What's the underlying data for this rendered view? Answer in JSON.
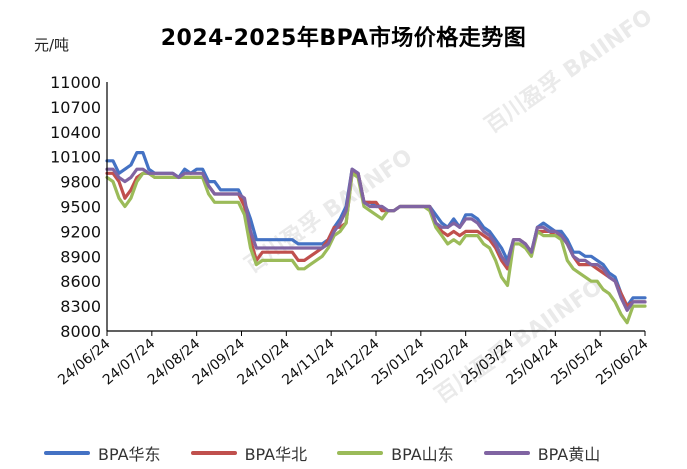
{
  "chart_data": {
    "type": "line",
    "title": "2024-2025年BPA市场价格走势图",
    "ylabel": "元/吨",
    "ylim": [
      8000,
      11000
    ],
    "yticks": [
      8000,
      8300,
      8600,
      8900,
      9200,
      9500,
      9800,
      10100,
      10400,
      10700,
      11000
    ],
    "xticks": [
      "24/06/24",
      "24/07/24",
      "24/08/24",
      "24/09/24",
      "24/10/24",
      "24/11/24",
      "24/12/24",
      "25/01/24",
      "25/02/24",
      "25/03/24",
      "25/04/24",
      "25/05/24",
      "25/06/24"
    ],
    "watermark": "百川盈孚 BAIINFO",
    "series": [
      {
        "name": "BPA华东",
        "color": "#4472C4",
        "values": [
          10050,
          10050,
          9900,
          9950,
          10000,
          10150,
          10150,
          9950,
          9900,
          9900,
          9900,
          9900,
          9850,
          9950,
          9900,
          9950,
          9950,
          9800,
          9800,
          9700,
          9700,
          9700,
          9700,
          9550,
          9350,
          9100,
          9100,
          9100,
          9100,
          9100,
          9100,
          9100,
          9050,
          9050,
          9050,
          9050,
          9050,
          9100,
          9250,
          9350,
          9500,
          9950,
          9900,
          9550,
          9550,
          9500,
          9500,
          9450,
          9450,
          9500,
          9500,
          9500,
          9500,
          9500,
          9500,
          9400,
          9300,
          9250,
          9350,
          9250,
          9400,
          9400,
          9350,
          9250,
          9200,
          9100,
          9000,
          8850,
          9100,
          9100,
          9050,
          8950,
          9250,
          9300,
          9250,
          9200,
          9200,
          9100,
          8950,
          8950,
          8900,
          8900,
          8850,
          8800,
          8700,
          8650,
          8450,
          8300,
          8400,
          8400,
          8400
        ]
      },
      {
        "name": "BPA华北",
        "color": "#C0504D",
        "values": [
          9900,
          9900,
          9800,
          9600,
          9700,
          9850,
          9900,
          9900,
          9850,
          9850,
          9850,
          9850,
          9850,
          9850,
          9850,
          9850,
          9850,
          9750,
          9650,
          9650,
          9650,
          9650,
          9650,
          9500,
          9100,
          8850,
          8950,
          8950,
          8950,
          8950,
          8950,
          8950,
          8850,
          8850,
          8900,
          8950,
          9000,
          9100,
          9250,
          9250,
          9300,
          9900,
          9900,
          9550,
          9550,
          9550,
          9450,
          9450,
          9450,
          9500,
          9500,
          9500,
          9500,
          9500,
          9500,
          9300,
          9200,
          9150,
          9200,
          9150,
          9200,
          9200,
          9200,
          9150,
          9100,
          9000,
          8850,
          8750,
          9100,
          9100,
          9050,
          8950,
          9200,
          9200,
          9200,
          9150,
          9150,
          9050,
          8900,
          8800,
          8800,
          8800,
          8750,
          8700,
          8650,
          8600,
          8450,
          8300,
          8350,
          8350,
          8350
        ]
      },
      {
        "name": "BPA山东",
        "color": "#9BBB59",
        "values": [
          9850,
          9800,
          9600,
          9500,
          9600,
          9800,
          9900,
          9900,
          9850,
          9850,
          9850,
          9850,
          9850,
          9850,
          9850,
          9850,
          9850,
          9650,
          9550,
          9550,
          9550,
          9550,
          9550,
          9400,
          9000,
          8800,
          8850,
          8850,
          8850,
          8850,
          8850,
          8850,
          8750,
          8750,
          8800,
          8850,
          8900,
          9000,
          9150,
          9200,
          9300,
          9900,
          9850,
          9500,
          9450,
          9400,
          9350,
          9450,
          9450,
          9500,
          9500,
          9500,
          9500,
          9500,
          9450,
          9250,
          9150,
          9050,
          9100,
          9050,
          9150,
          9150,
          9150,
          9050,
          9000,
          8850,
          8650,
          8550,
          9050,
          9050,
          9000,
          8900,
          9200,
          9150,
          9150,
          9150,
          9100,
          8850,
          8750,
          8700,
          8650,
          8600,
          8600,
          8500,
          8450,
          8350,
          8200,
          8100,
          8300,
          8300,
          8300
        ]
      },
      {
        "name": "BPA黄山",
        "color": "#8064A2",
        "values": [
          9950,
          9950,
          9850,
          9800,
          9850,
          9950,
          9950,
          9900,
          9900,
          9900,
          9900,
          9900,
          9850,
          9900,
          9900,
          9900,
          9900,
          9750,
          9650,
          9650,
          9650,
          9650,
          9650,
          9600,
          9200,
          9000,
          9000,
          9000,
          9000,
          9000,
          9000,
          9000,
          9000,
          9000,
          9000,
          9000,
          9000,
          9050,
          9200,
          9300,
          9450,
          9950,
          9900,
          9550,
          9500,
          9500,
          9500,
          9450,
          9450,
          9500,
          9500,
          9500,
          9500,
          9500,
          9500,
          9300,
          9250,
          9250,
          9300,
          9250,
          9350,
          9350,
          9300,
          9200,
          9150,
          9050,
          8900,
          8800,
          9100,
          9100,
          9050,
          8950,
          9250,
          9250,
          9200,
          9200,
          9150,
          9050,
          8900,
          8850,
          8850,
          8800,
          8800,
          8750,
          8650,
          8600,
          8400,
          8250,
          8350,
          8350,
          8350
        ]
      }
    ]
  }
}
